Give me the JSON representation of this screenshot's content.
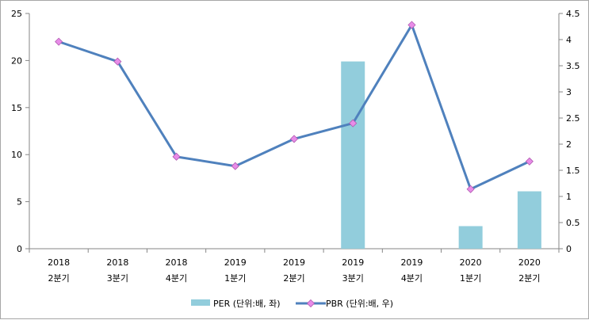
{
  "chart_data": {
    "type": "bar+line",
    "categories": [
      [
        "2018",
        "2분기"
      ],
      [
        "2018",
        "3분기"
      ],
      [
        "2018",
        "4분기"
      ],
      [
        "2019",
        "1분기"
      ],
      [
        "2019",
        "2분기"
      ],
      [
        "2019",
        "3분기"
      ],
      [
        "2019",
        "4분기"
      ],
      [
        "2020",
        "1분기"
      ],
      [
        "2020",
        "2분기"
      ]
    ],
    "series": [
      {
        "name": "PER (단위:배, 좌)",
        "type": "bar",
        "axis": "left",
        "color": "#92cddc",
        "values": [
          null,
          null,
          null,
          null,
          null,
          19.9,
          null,
          2.4,
          6.1
        ]
      },
      {
        "name": "PBR (단위:배, 우)",
        "type": "line",
        "axis": "right",
        "color": "#4f81bd",
        "marker_color": "#e88ce8",
        "values": [
          3.96,
          3.58,
          1.76,
          1.58,
          2.1,
          2.4,
          4.28,
          1.14,
          1.67
        ]
      }
    ],
    "y_left": {
      "min": 0,
      "max": 25,
      "ticks": [
        "0",
        "5",
        "10",
        "15",
        "20",
        "25"
      ]
    },
    "y_right": {
      "min": 0,
      "max": 4.5,
      "ticks": [
        "0",
        "0.5",
        "1",
        "1.5",
        "2",
        "2.5",
        "3",
        "3.5",
        "4",
        "4.5"
      ]
    },
    "title": "",
    "xlabel": "",
    "ylabel": "",
    "grid": false,
    "legend": "bottom"
  }
}
